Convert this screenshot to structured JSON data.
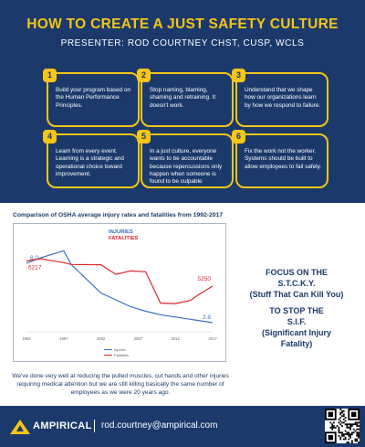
{
  "header": {
    "title": "HOW TO CREATE A JUST SAFETY CULTURE",
    "presenter": "PRESENTER: ROD COURTNEY CHST, CUSP, WCLS"
  },
  "cards": [
    {
      "number": "1",
      "text": "Build your program based on the Human Performance Principles."
    },
    {
      "number": "2",
      "text": "Stop naming, blaming, shaming and retraining. It doesn't work."
    },
    {
      "number": "3",
      "text": "Understand that we shape how our organizations learn by how we respond to failure."
    },
    {
      "number": "4",
      "text": "Learn from every event. Learning is a strategic and operational choice toward improvement."
    },
    {
      "number": "5",
      "text": "In a just culture, everyone wants to be accountable because repercussions only happen when someone is found to be culpable"
    },
    {
      "number": "6",
      "text": "Fix the work not the worker. Systems should be built to allow employees to fail safely."
    }
  ],
  "chart_title": "Comparison of OSHA average injury rates and fatalities from 1992-2017",
  "chart_data": {
    "type": "line",
    "x": [
      1992,
      1994,
      1995,
      1997,
      1998,
      2002,
      2004,
      2006,
      2008,
      2010,
      2012,
      2014,
      2015,
      2017
    ],
    "x_ticks": [
      "1992",
      "1997",
      "2002",
      "2007",
      "2012",
      "2017"
    ],
    "legend_top": [
      "INJURIES",
      "FATALITIES"
    ],
    "legend_bottom": [
      "Injuries",
      "Fatalities"
    ],
    "series": [
      {
        "name": "INJURIES",
        "color": "#3a6fc4",
        "values": [
          8.0,
          8.5,
          8.7,
          9.1,
          7.9,
          5.4,
          4.8,
          4.2,
          3.8,
          3.5,
          3.3,
          3.1,
          3.0,
          2.8
        ],
        "start_label": "8.0",
        "end_label": "2.8"
      },
      {
        "name": "FATALITIES",
        "color": "#e0262e",
        "values": [
          6217,
          6300,
          6240,
          6150,
          6080,
          6070,
          5700,
          5830,
          5800,
          4600,
          4580,
          4700,
          4900,
          5250
        ],
        "start_label": "6217",
        "end_label": "5250"
      }
    ]
  },
  "caption": "We've done very well at reducing the pulled  muscles, cut hands and other injuries requiring medical attention but we are still killing basically  the same number of employees as we were 20  years ago.",
  "focus": {
    "line1": "FOCUS ON THE",
    "line2": "S.T.C.K.Y.",
    "line3": "(Stuff That Can Kill You)"
  },
  "stop": {
    "line1": "TO STOP THE",
    "line2": "S.I.F.",
    "line3": "(Significant Injury",
    "line4": "Fatality)"
  },
  "footer": {
    "brand": "AMPIRICAL",
    "email": "rod.courtney@ampirical.com"
  },
  "colors": {
    "navy": "#1b3a6b",
    "gold": "#f5c518",
    "injuries": "#3a6fc4",
    "fatalities": "#e0262e"
  }
}
